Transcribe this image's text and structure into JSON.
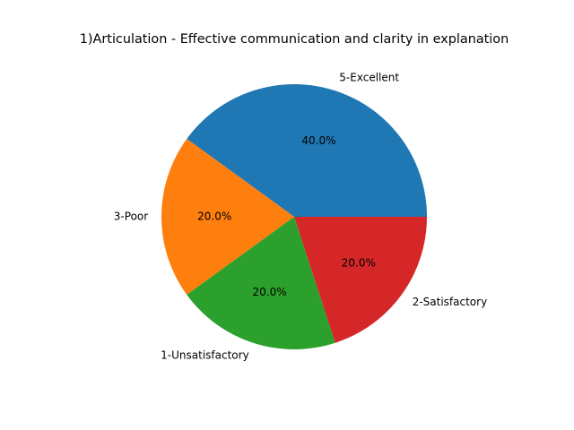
{
  "chart_data": {
    "type": "pie",
    "title": "1)Articulation -  Effective communication and clarity in explanation",
    "categories": [
      "5-Excellent",
      "3-Poor",
      "1-Unsatisfactory",
      "2-Satisfactory"
    ],
    "values": [
      40.0,
      20.0,
      20.0,
      20.0
    ],
    "value_labels": [
      "40.0%",
      "20.0%",
      "20.0%",
      "20.0%"
    ],
    "colors": [
      "#1f77b4",
      "#ff7f0e",
      "#2ca02c",
      "#d62728"
    ],
    "start_angle_deg": 0,
    "direction": "counterclockwise",
    "legend": "none"
  }
}
